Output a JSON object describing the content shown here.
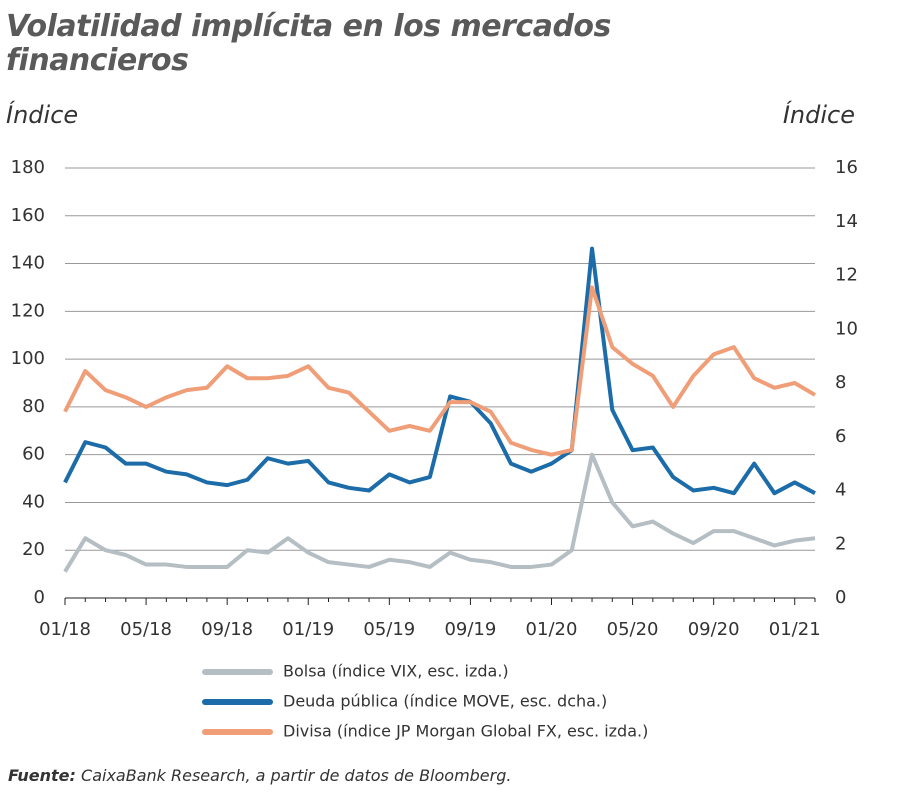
{
  "chart_data": {
    "type": "line",
    "title": "Volatilidad implícita en los mercados financieros",
    "y_label": "Índice",
    "y2_label": "Índice",
    "source_label": "Fuente:",
    "source_text": "CaixaBank Research, a partir de datos de Bloomberg.",
    "categories": [
      "01/18",
      null,
      null,
      null,
      "05/18",
      null,
      null,
      null,
      "09/18",
      null,
      null,
      null,
      "01/19",
      null,
      null,
      null,
      "05/19",
      null,
      null,
      null,
      "09/19",
      null,
      null,
      null,
      "01/20",
      null,
      null,
      null,
      "05/20",
      null,
      null,
      null,
      "09/20",
      null,
      null,
      null,
      "01/21",
      null
    ],
    "ylim": [
      0,
      180
    ],
    "yticks": [
      0,
      20,
      40,
      60,
      80,
      100,
      120,
      140,
      160,
      180
    ],
    "y2lim": [
      0,
      16
    ],
    "y2ticks": [
      0,
      2,
      4,
      6,
      8,
      10,
      12,
      14,
      16
    ],
    "grid": true,
    "series": [
      {
        "name": "Bolsa (índice VIX, esc. izda.)",
        "color": "#b5bec3",
        "values": [
          11,
          25,
          20,
          18,
          14,
          14,
          13,
          13,
          13,
          20,
          19,
          25,
          19,
          15,
          14,
          13,
          16,
          15,
          13,
          19,
          16,
          15,
          13,
          13,
          14,
          20,
          60,
          40,
          30,
          32,
          27,
          23,
          28,
          28,
          25,
          22,
          24,
          25
        ]
      },
      {
        "name": "Deuda pública (índice MOVE, esc. dcha.)",
        "color": "#1b6ca8",
        "axis": "y2",
        "values": [
          4.3,
          5.8,
          5.6,
          5.0,
          5.0,
          4.7,
          4.6,
          4.3,
          4.2,
          4.4,
          5.2,
          5.0,
          5.1,
          4.3,
          4.1,
          4.0,
          4.6,
          4.3,
          4.5,
          7.5,
          7.3,
          6.5,
          5.0,
          4.7,
          5.0,
          5.5,
          13.0,
          7.0,
          5.5,
          5.6,
          4.5,
          4.0,
          4.1,
          3.9,
          5.0,
          3.9,
          4.3,
          3.9
        ]
      },
      {
        "name": "Divisa (índice JP Morgan Global FX, esc. izda.)",
        "color": "#f09e78",
        "values": [
          78,
          95,
          87,
          84,
          80,
          84,
          87,
          88,
          97,
          92,
          92,
          93,
          97,
          88,
          86,
          78,
          70,
          72,
          70,
          82,
          82,
          78,
          65,
          62,
          60,
          62,
          130,
          105,
          98,
          93,
          80,
          93,
          102,
          105,
          92,
          88,
          90,
          85
        ]
      }
    ]
  }
}
